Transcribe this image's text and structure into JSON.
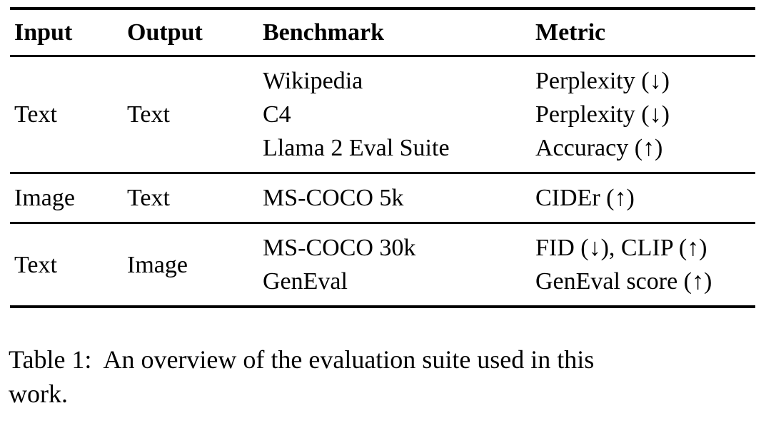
{
  "table": {
    "columns": [
      "Input",
      "Output",
      "Benchmark",
      "Metric"
    ],
    "rows": [
      {
        "input": "Text",
        "output": "Text",
        "benchmarks": [
          "Wikipedia",
          "C4",
          "Llama 2 Eval Suite"
        ],
        "metrics": [
          "Perplexity (↓)",
          "Perplexity (↓)",
          "Accuracy (↑)"
        ]
      },
      {
        "input": "Image",
        "output": "Text",
        "benchmarks": [
          "MS-COCO 5k"
        ],
        "metrics": [
          "CIDEr (↑)"
        ]
      },
      {
        "input": "Text",
        "output": "Image",
        "benchmarks": [
          "MS-COCO 30k",
          "GenEval"
        ],
        "metrics": [
          "FID (↓), CLIP (↑)",
          "GenEval score (↑)"
        ]
      }
    ]
  },
  "caption": {
    "lines": [
      "Table 1:  An overview of the evaluation suite used in this",
      "work."
    ]
  },
  "colors": {
    "text": "#000000",
    "background": "#ffffff",
    "rule": "#000000"
  }
}
